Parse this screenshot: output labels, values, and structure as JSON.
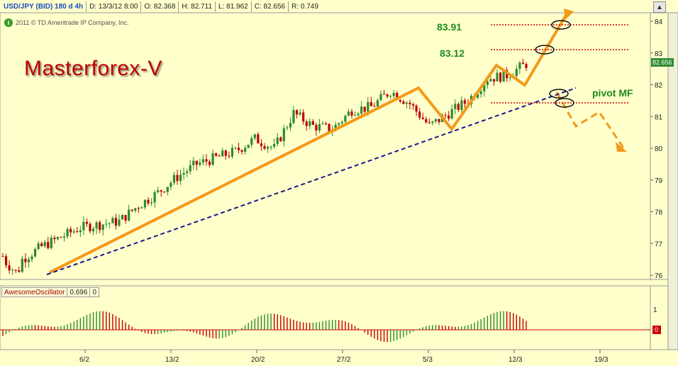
{
  "header": {
    "symbol": "USD/JPY (BID) 180 d 4h",
    "date": "D: 13/3/12 8:00",
    "open": "O: 82.368",
    "high": "H: 82.711",
    "low": "L: 81.962",
    "close": "C: 82.656",
    "range": "R: 0.749"
  },
  "copyright": "2011 © TD Ameritrade IP Company, Inc.",
  "info_icon": "i",
  "overlay_title": "Masterforex-V",
  "levels": {
    "upper": "83.91",
    "lower": "83.12",
    "pivot": "pivot MF"
  },
  "oscillator": {
    "name": "AwesomeOscillator",
    "value": "0.696",
    "zero": "0",
    "zero_tag": "0",
    "axis_top": "1"
  },
  "current_price_tag": "82.656",
  "scroll_button": "▲",
  "colors": {
    "background": "#ffffcc",
    "candle_up": "#2e8b2e",
    "candle_down": "#c00000",
    "trend_line": "#f39a1a",
    "support_line": "#1a1a8c",
    "level_line": "#cc0000",
    "annotation_green": "#1e8c1e"
  },
  "chart_data": {
    "type": "candlestick",
    "title": "USD/JPY (BID) 180 d 4h",
    "x_tick_labels": [
      "6/2",
      "13/2",
      "20/2",
      "27/2",
      "5/3",
      "12/3",
      "19/3"
    ],
    "y_tick_labels": [
      "76",
      "77",
      "78",
      "79",
      "80",
      "81",
      "82",
      "83",
      "84"
    ],
    "ylim": [
      76,
      84
    ],
    "grid": false,
    "series": [
      {
        "type": "candlestick",
        "points": [
          {
            "t": "6/2",
            "close": 76.5
          },
          {
            "t": "7/2",
            "close": 76.9
          },
          {
            "t": "8/2",
            "close": 77.2
          },
          {
            "t": "9/2",
            "close": 77.5
          },
          {
            "t": "10/2",
            "close": 77.6
          },
          {
            "t": "13/2",
            "close": 77.7
          },
          {
            "t": "14/2",
            "close": 78.2
          },
          {
            "t": "15/2",
            "close": 78.6
          },
          {
            "t": "16/2",
            "close": 79.1
          },
          {
            "t": "17/2",
            "close": 79.5
          },
          {
            "t": "20/2",
            "close": 79.7
          },
          {
            "t": "21/2",
            "close": 79.9
          },
          {
            "t": "22/2",
            "close": 80.3
          },
          {
            "t": "23/2",
            "close": 80.0
          },
          {
            "t": "24/2",
            "close": 81.1
          },
          {
            "t": "27/2",
            "close": 80.7
          },
          {
            "t": "28/2",
            "close": 80.6
          },
          {
            "t": "29/2",
            "close": 81.2
          },
          {
            "t": "1/3",
            "close": 81.3
          },
          {
            "t": "2/3",
            "close": 81.8
          },
          {
            "t": "5/3",
            "close": 81.4
          },
          {
            "t": "6/3",
            "close": 80.7
          },
          {
            "t": "7/3",
            "close": 81.1
          },
          {
            "t": "8/3",
            "close": 81.5
          },
          {
            "t": "9/3",
            "close": 82.2
          },
          {
            "t": "12/3",
            "close": 82.3
          },
          {
            "t": "13/3",
            "close": 82.656
          }
        ]
      }
    ],
    "annotations": [
      {
        "type": "V-pattern trend",
        "label": "Masterforex-V"
      },
      {
        "type": "horizontal level",
        "value": 83.91,
        "label": "83.91"
      },
      {
        "type": "horizontal level",
        "value": 83.12,
        "label": "83.12"
      },
      {
        "type": "horizontal level",
        "label": "pivot MF"
      },
      {
        "type": "support trend line"
      }
    ],
    "subchart": {
      "type": "bar",
      "name": "AwesomeOscillator",
      "value": 0.696,
      "ylim": [
        -0.4,
        1.1
      ],
      "y_tick_labels": [
        "1",
        "0"
      ]
    }
  }
}
